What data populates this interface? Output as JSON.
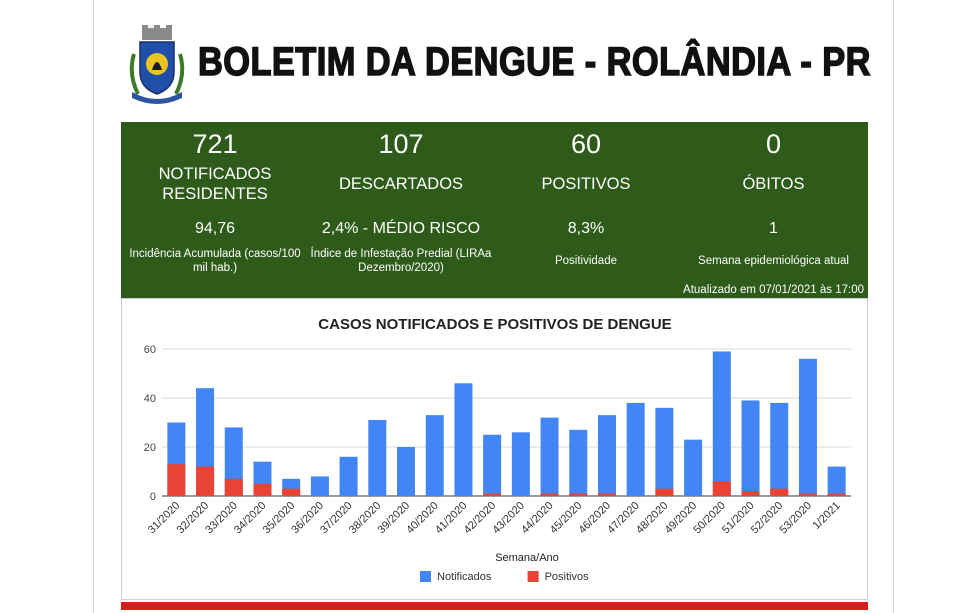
{
  "header": {
    "title": "BOLETIM DA DENGUE - ROLÂNDIA - PR",
    "crest_icon": "municipal-coat-of-arms-icon"
  },
  "stats": [
    {
      "value": "721",
      "label": "NOTIFICADOS RESIDENTES",
      "sub_value": "94,76",
      "sub_caption": "Incidência Acumulada (casos/100 mil hab.)"
    },
    {
      "value": "107",
      "label": "DESCARTADOS",
      "sub_value": "2,4% - MÉDIO RISCO",
      "sub_caption": "Índice de Infestação Predial (LIRAa Dezembro/2020)"
    },
    {
      "value": "60",
      "label": "POSITIVOS",
      "sub_value": "8,3%",
      "sub_caption": "Positividade"
    },
    {
      "value": "0",
      "label": "ÓBITOS",
      "sub_value": "1",
      "sub_caption": "Semana epidemiológica atual"
    }
  ],
  "updated_note": "Atualizado em 07/01/2021 às 17:00",
  "colors": {
    "panel_bg": "#2e5b1a",
    "notificados": "#4285f4",
    "positivos": "#ea4335",
    "accent_rule": "#e01b1b"
  },
  "chart_data": {
    "type": "bar",
    "title": "CASOS NOTIFICADOS E POSITIVOS DE DENGUE",
    "xlabel": "Semana/Ano",
    "ylabel": "",
    "ylim": [
      0,
      60
    ],
    "yticks": [
      0,
      20,
      40,
      60
    ],
    "grid": true,
    "legend_position": "bottom",
    "overlap": true,
    "categories": [
      "31/2020",
      "32/2020",
      "33/2020",
      "34/2020",
      "35/2020",
      "36/2020",
      "37/2020",
      "38/2020",
      "39/2020",
      "40/2020",
      "41/2020",
      "42/2020",
      "43/2020",
      "44/2020",
      "45/2020",
      "46/2020",
      "47/2020",
      "48/2020",
      "49/2020",
      "50/2020",
      "51/2020",
      "52/2020",
      "53/2020",
      "1/2021"
    ],
    "series": [
      {
        "name": "Notificados",
        "color": "#4285f4",
        "values": [
          30,
          44,
          28,
          14,
          7,
          8,
          16,
          31,
          20,
          33,
          46,
          25,
          26,
          32,
          27,
          33,
          38,
          36,
          23,
          59,
          39,
          38,
          56,
          12
        ]
      },
      {
        "name": "Positivos",
        "color": "#ea4335",
        "values": [
          13,
          12,
          7,
          5,
          3,
          0,
          0,
          0,
          0,
          0,
          0,
          1,
          0,
          1,
          1,
          1,
          0,
          3,
          0,
          6,
          2,
          3,
          1,
          1
        ]
      }
    ]
  }
}
